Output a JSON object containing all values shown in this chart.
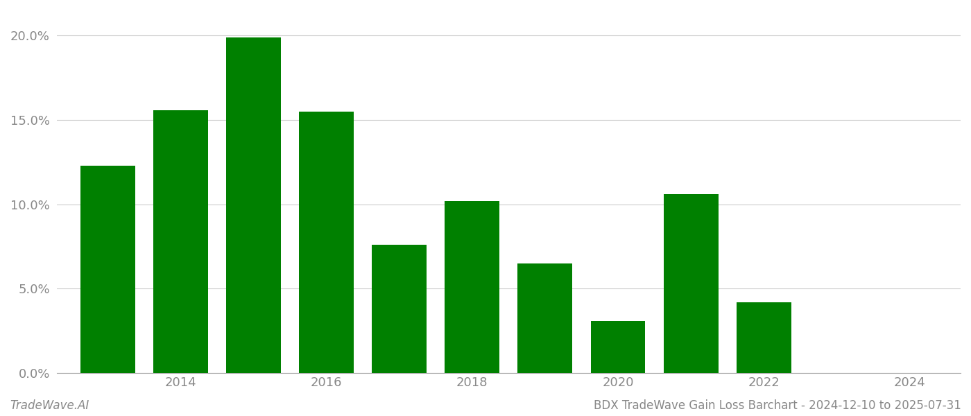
{
  "years": [
    2013,
    2014,
    2015,
    2016,
    2017,
    2018,
    2019,
    2020,
    2021,
    2022,
    2023
  ],
  "values": [
    0.123,
    0.156,
    0.199,
    0.155,
    0.076,
    0.102,
    0.065,
    0.031,
    0.106,
    0.042,
    0.0
  ],
  "bar_color": "#008000",
  "title": "BDX TradeWave Gain Loss Barchart - 2024-12-10 to 2025-07-31",
  "watermark": "TradeWave.AI",
  "xtick_labels": [
    "2014",
    "2016",
    "2018",
    "2020",
    "2022",
    "2024"
  ],
  "xtick_positions": [
    2014,
    2016,
    2018,
    2020,
    2022,
    2024
  ],
  "ytick_labels": [
    "0.0%",
    "5.0%",
    "10.0%",
    "15.0%",
    "20.0%"
  ],
  "ytick_values": [
    0.0,
    0.05,
    0.1,
    0.15,
    0.2
  ],
  "ylim": [
    0,
    0.215
  ],
  "background_color": "#ffffff",
  "grid_color": "#cccccc",
  "bar_width": 0.75
}
